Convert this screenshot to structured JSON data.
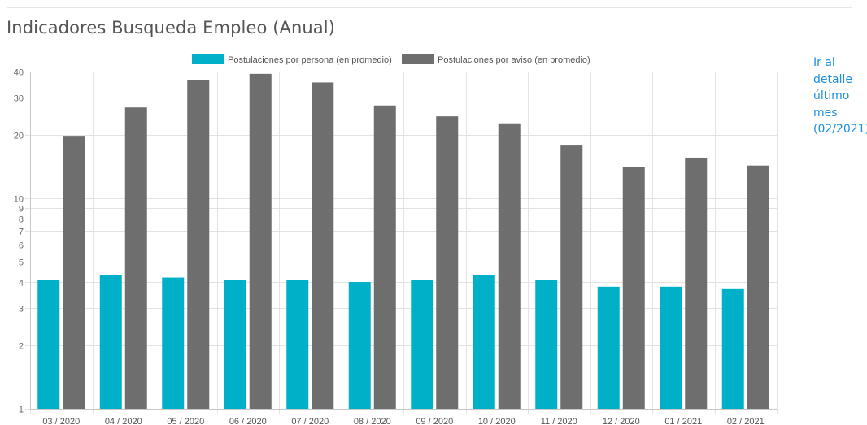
{
  "page": {
    "title": "Indicadores Busqueda Empleo (Anual)",
    "side_link": "Ir al detalle último mes (02/2021)"
  },
  "colors": {
    "series_persona": "#00b0c8",
    "series_aviso": "#6e6e6e",
    "link": "#1f8fe0"
  },
  "chart_data": {
    "type": "bar",
    "title": "",
    "xlabel": "",
    "ylabel": "",
    "yscale": "log",
    "ylim": [
      1,
      40
    ],
    "y_ticks": [
      1,
      2,
      3,
      4,
      5,
      6,
      7,
      8,
      9,
      10,
      20,
      30,
      40
    ],
    "grid": true,
    "legend_position": "top",
    "categories": [
      "03 / 2020",
      "04 / 2020",
      "05 / 2020",
      "06 / 2020",
      "07 / 2020",
      "08 / 2020",
      "09 / 2020",
      "10 / 2020",
      "11 / 2020",
      "12 / 2020",
      "01 / 2021",
      "02 / 2021"
    ],
    "series": [
      {
        "name": "Postulaciones por persona (en promedio)",
        "color": "#00b0c8",
        "values": [
          4.1,
          4.3,
          4.2,
          4.1,
          4.1,
          4.0,
          4.1,
          4.3,
          4.1,
          3.8,
          3.8,
          3.7
        ]
      },
      {
        "name": "Postulaciones por aviso (en promedio)",
        "color": "#6e6e6e",
        "values": [
          19.8,
          27.0,
          36.3,
          39.0,
          35.5,
          27.6,
          24.5,
          22.7,
          17.8,
          14.1,
          15.6,
          14.3
        ]
      }
    ]
  }
}
